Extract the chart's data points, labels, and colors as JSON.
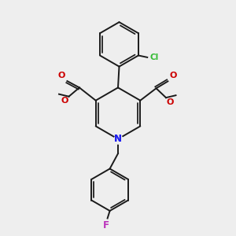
{
  "bg_color": "#eeeeee",
  "bond_color": "#1a1a1a",
  "N_color": "#2020ee",
  "O_color": "#cc0000",
  "Cl_color": "#33bb33",
  "F_color": "#bb33bb",
  "lw": 1.4,
  "xlim": [
    0,
    10
  ],
  "ylim": [
    0,
    10
  ],
  "figsize": [
    3.0,
    3.0
  ],
  "dpi": 100
}
